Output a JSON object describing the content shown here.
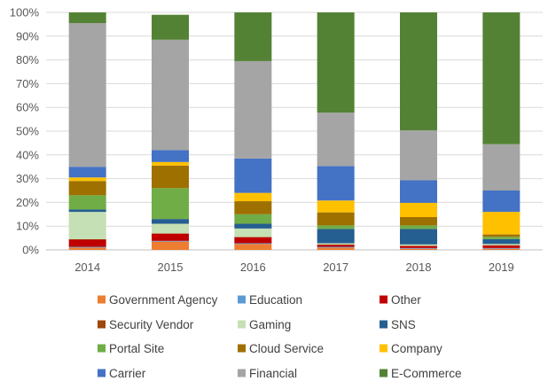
{
  "chart_data": {
    "type": "bar",
    "stacked": true,
    "percent": true,
    "categories": [
      "2014",
      "2015",
      "2016",
      "2017",
      "2018",
      "2019"
    ],
    "ylim": [
      0,
      100
    ],
    "yticks": [
      "0%",
      "10%",
      "20%",
      "30%",
      "40%",
      "50%",
      "60%",
      "70%",
      "80%",
      "90%",
      "100%"
    ],
    "grid": true,
    "legend_position": "bottom",
    "series": [
      {
        "name": "Government Agency",
        "color": "#ED7D31",
        "values": [
          1.0,
          3.5,
          2.5,
          1.0,
          0.5,
          0.5
        ]
      },
      {
        "name": "Education",
        "color": "#5B9BD5",
        "values": [
          0.3,
          0.3,
          0.3,
          0.3,
          0.3,
          0.3
        ]
      },
      {
        "name": "Other",
        "color": "#C00000",
        "values": [
          3.0,
          3.0,
          2.5,
          0.8,
          0.8,
          1.0
        ]
      },
      {
        "name": "Security Vendor",
        "color": "#9E480E",
        "values": [
          0.2,
          0.2,
          0.2,
          0.2,
          0.2,
          0.2
        ]
      },
      {
        "name": "Gaming",
        "color": "#C5E0B4",
        "values": [
          11.5,
          4.0,
          3.5,
          0.5,
          0.5,
          0.5
        ]
      },
      {
        "name": "SNS",
        "color": "#255E91",
        "values": [
          1.0,
          2.0,
          2.0,
          6.0,
          6.5,
          2.0
        ]
      },
      {
        "name": "Portal Site",
        "color": "#70AD47",
        "values": [
          6.0,
          13.0,
          4.0,
          1.5,
          1.5,
          1.0
        ]
      },
      {
        "name": "Cloud Service",
        "color": "#9E7000",
        "values": [
          6.0,
          9.5,
          5.5,
          5.5,
          3.5,
          1.0
        ]
      },
      {
        "name": "Company",
        "color": "#FFC000",
        "values": [
          1.5,
          1.5,
          3.5,
          5.0,
          6.0,
          9.5
        ]
      },
      {
        "name": "Carrier",
        "color": "#4472C4",
        "values": [
          4.5,
          5.0,
          14.5,
          14.5,
          9.5,
          9.0
        ]
      },
      {
        "name": "Financial",
        "color": "#A5A5A5",
        "values": [
          60.5,
          46.5,
          41.0,
          22.5,
          21.0,
          19.5
        ]
      },
      {
        "name": "E-Commerce",
        "color": "#548235",
        "values": [
          4.5,
          10.5,
          20.5,
          42.2,
          49.7,
          55.5
        ]
      }
    ]
  }
}
